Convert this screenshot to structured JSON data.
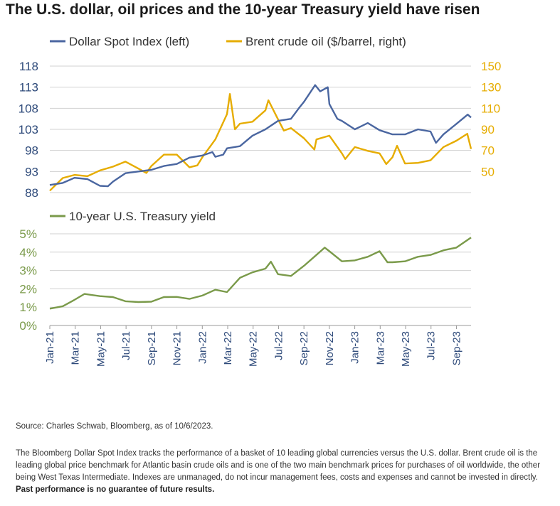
{
  "title": "The U.S. dollar, oil prices and the 10-year Treasury yield have risen",
  "colors": {
    "dollar": "#4a66a0",
    "brent": "#e6ac00",
    "treasury": "#7a9a4a",
    "grid": "#d0d0d0",
    "axis": "#999999"
  },
  "chart_data": [
    {
      "type": "line",
      "x_ticks": [
        "Jan-21",
        "Mar-21",
        "May-21",
        "Jul-21",
        "Sep-21",
        "Nov-21",
        "Jan-22",
        "Mar-22",
        "May-22",
        "Jul-22",
        "Sep-22",
        "Nov-22",
        "Jan-23",
        "Mar-23",
        "May-23",
        "Jul-23",
        "Sep-23"
      ],
      "y_left": {
        "ticks": [
          "118",
          "113",
          "108",
          "103",
          "98",
          "93",
          "88"
        ],
        "ylim": [
          88,
          118
        ]
      },
      "y_right": {
        "ticks": [
          "150",
          "130",
          "110",
          "90",
          "70",
          "50"
        ],
        "ylim": [
          50,
          150
        ]
      },
      "series": [
        {
          "name": "Dollar Spot Index (left)",
          "axis": "left",
          "x": [
            "2021-01-01",
            "2021-02-01",
            "2021-03-01",
            "2021-04-01",
            "2021-05-01",
            "2021-05-20",
            "2021-06-01",
            "2021-07-01",
            "2021-08-01",
            "2021-09-01",
            "2021-10-01",
            "2021-11-01",
            "2021-12-01",
            "2022-01-01",
            "2022-01-25",
            "2022-02-01",
            "2022-02-20",
            "2022-03-01",
            "2022-04-01",
            "2022-05-01",
            "2022-06-01",
            "2022-07-01",
            "2022-08-01",
            "2022-08-20",
            "2022-09-01",
            "2022-09-28",
            "2022-10-10",
            "2022-10-28",
            "2022-11-01",
            "2022-11-20",
            "2022-12-01",
            "2023-01-01",
            "2023-02-01",
            "2023-03-01",
            "2023-04-01",
            "2023-05-01",
            "2023-06-01",
            "2023-07-01",
            "2023-07-14",
            "2023-08-01",
            "2023-09-01",
            "2023-09-28",
            "2023-10-06"
          ],
          "values": [
            89.8,
            90.3,
            91.5,
            91.2,
            89.6,
            89.5,
            90.6,
            92.6,
            93.0,
            93.4,
            94.3,
            94.8,
            96.3,
            96.8,
            97.6,
            96.5,
            97.0,
            98.5,
            99.0,
            101.5,
            103.0,
            105.0,
            105.5,
            108.0,
            109.5,
            113.5,
            112.0,
            113.0,
            109.0,
            105.5,
            105.0,
            103.0,
            104.5,
            102.8,
            101.8,
            101.8,
            103.0,
            102.5,
            99.8,
            101.8,
            104.3,
            106.5,
            105.8
          ]
        },
        {
          "name": "Brent crude oil ($/barrel, right)",
          "axis": "right",
          "x": [
            "2021-01-01",
            "2021-02-01",
            "2021-03-01",
            "2021-04-01",
            "2021-05-01",
            "2021-06-01",
            "2021-07-01",
            "2021-08-01",
            "2021-08-20",
            "2021-09-01",
            "2021-10-01",
            "2021-11-01",
            "2021-12-01",
            "2021-12-20",
            "2022-01-01",
            "2022-02-01",
            "2022-03-01",
            "2022-03-08",
            "2022-03-20",
            "2022-04-01",
            "2022-05-01",
            "2022-06-01",
            "2022-06-08",
            "2022-07-01",
            "2022-07-15",
            "2022-08-01",
            "2022-09-01",
            "2022-09-26",
            "2022-10-01",
            "2022-11-01",
            "2022-12-01",
            "2022-12-09",
            "2023-01-01",
            "2023-02-01",
            "2023-03-01",
            "2023-03-17",
            "2023-04-01",
            "2023-04-12",
            "2023-05-01",
            "2023-06-01",
            "2023-07-01",
            "2023-08-01",
            "2023-09-01",
            "2023-09-27",
            "2023-10-06"
          ],
          "values": [
            51.5,
            61.5,
            64.0,
            63.0,
            67.5,
            70.5,
            74.5,
            69.0,
            65.5,
            71.0,
            80.0,
            80.0,
            70.0,
            71.5,
            78.0,
            92.0,
            112.0,
            128.0,
            100.0,
            104.5,
            106.0,
            115.0,
            123.0,
            108.0,
            99.0,
            101.0,
            93.0,
            84.0,
            92.0,
            95.0,
            81.0,
            76.5,
            86.0,
            83.0,
            81.0,
            72.5,
            78.0,
            87.0,
            73.0,
            73.5,
            75.5,
            86.0,
            91.0,
            96.5,
            84.5
          ]
        }
      ],
      "legend": "top-left"
    },
    {
      "type": "line",
      "x_ticks": [
        "Jan-21",
        "Mar-21",
        "May-21",
        "Jul-21",
        "Sep-21",
        "Nov-21",
        "Jan-22",
        "Mar-22",
        "May-22",
        "Jul-22",
        "Sep-22",
        "Nov-22",
        "Jan-23",
        "Mar-23",
        "May-23",
        "Jul-23",
        "Sep-23"
      ],
      "y": {
        "ticks": [
          "5%",
          "4%",
          "3%",
          "2%",
          "1%",
          "0%"
        ],
        "ylim": [
          0,
          5
        ]
      },
      "series": [
        {
          "name": "10-year U.S. Treasury yield",
          "x": [
            "2021-01-01",
            "2021-02-01",
            "2021-03-01",
            "2021-03-25",
            "2021-05-01",
            "2021-06-01",
            "2021-07-01",
            "2021-08-01",
            "2021-09-01",
            "2021-10-01",
            "2021-11-01",
            "2021-12-01",
            "2022-01-01",
            "2022-02-01",
            "2022-03-01",
            "2022-04-01",
            "2022-05-01",
            "2022-06-01",
            "2022-06-14",
            "2022-07-01",
            "2022-08-01",
            "2022-09-01",
            "2022-10-01",
            "2022-10-21",
            "2022-11-01",
            "2022-12-01",
            "2023-01-01",
            "2023-02-01",
            "2023-03-01",
            "2023-03-20",
            "2023-04-01",
            "2023-05-01",
            "2023-06-01",
            "2023-07-01",
            "2023-08-01",
            "2023-09-01",
            "2023-10-06"
          ],
          "values": [
            0.92,
            1.05,
            1.4,
            1.72,
            1.6,
            1.55,
            1.32,
            1.28,
            1.3,
            1.55,
            1.56,
            1.45,
            1.63,
            1.95,
            1.82,
            2.6,
            2.9,
            3.1,
            3.48,
            2.8,
            2.7,
            3.25,
            3.85,
            4.25,
            4.05,
            3.5,
            3.55,
            3.75,
            4.05,
            3.45,
            3.45,
            3.5,
            3.75,
            3.85,
            4.1,
            4.25,
            4.8
          ]
        }
      ],
      "legend": "top-left"
    }
  ],
  "source": "Source: Charles Schwab, Bloomberg, as of 10/6/2023.",
  "footnote": "The Bloomberg Dollar Spot Index tracks the performance of a basket of 10 leading global currencies versus the U.S. dollar. Brent crude oil is the leading global price benchmark for Atlantic basin crude oils and is one of the two main benchmark prices for purchases of oil worldwide, the other being West Texas Intermediate. Indexes are unmanaged, do not incur management fees, costs and expenses and cannot be invested in directly.",
  "footnote_bold": "Past performance is no guarantee of future results."
}
